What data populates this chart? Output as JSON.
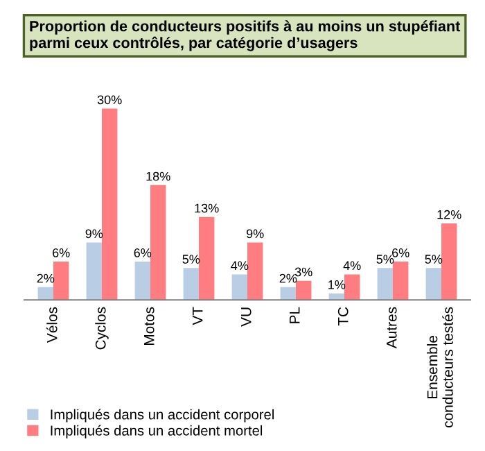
{
  "chart_data": {
    "type": "bar",
    "title": "Proportion de conducteurs positifs à au moins un stupéfiant parmi ceux contrôlés, par catégorie d’usagers",
    "categories": [
      "Vélos",
      "Cyclos",
      "Motos",
      "VT",
      "VU",
      "PL",
      "TC",
      "Autres",
      "Ensemble\nconducteurs testés"
    ],
    "series": [
      {
        "name": "Impliqués dans un accident corporel",
        "color": "#b9cde5",
        "values": [
          2,
          9,
          6,
          5,
          4,
          2,
          1,
          5,
          5
        ],
        "value_labels": [
          "2%",
          "9%",
          "6%",
          "5%",
          "4%",
          "2%",
          "1%",
          "5%",
          "5%"
        ]
      },
      {
        "name": "Impliqués dans un accident mortel",
        "color": "#ff7c80",
        "values": [
          6,
          30,
          18,
          13,
          9,
          3,
          4,
          6,
          12
        ],
        "value_labels": [
          "6%",
          "30%",
          "18%",
          "13%",
          "9%",
          "3%",
          "4%",
          "6%",
          "12%"
        ]
      }
    ],
    "legend": "bottom",
    "grid": false,
    "tick_labels": "x"
  }
}
